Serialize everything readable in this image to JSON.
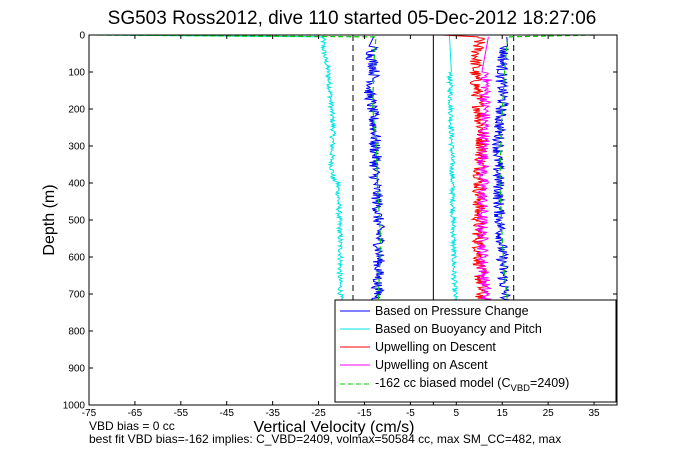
{
  "chart_data": {
    "type": "line",
    "title": "SG503 Ross2012, dive 110 started 05-Dec-2012 18:27:06",
    "xlabel": "Vertical Velocity (cm/s)",
    "ylabel": "Depth (m)",
    "xlim": [
      -75,
      40
    ],
    "ylim": [
      1000,
      0
    ],
    "y_reversed": true,
    "grid": false,
    "xticks": [
      -75,
      -65,
      -55,
      -45,
      -35,
      -25,
      -15,
      -5,
      5,
      15,
      25,
      35
    ],
    "yticks": [
      0,
      100,
      200,
      300,
      400,
      500,
      600,
      700,
      800,
      900,
      1000
    ],
    "legend_position": "bottom-right",
    "series": [
      {
        "name": "Based on Pressure Change",
        "color": "#0000ff",
        "style": "solid",
        "branches": [
          {
            "x": [
              -13,
              -13.2,
              -13.5,
              -12.8,
              -13,
              -14,
              -13.6,
              -13.2,
              -13,
              -12.6,
              -12.8,
              -12.5,
              -12.8,
              -12.6,
              -12.4,
              -12.2,
              -12,
              -11.8,
              -11.8,
              -12,
              -12.2,
              -12,
              -12.4,
              -12.2
            ],
            "y": [
              5,
              30,
              60,
              90,
              120,
              150,
              180,
              210,
              240,
              270,
              300,
              330,
              360,
              390,
              420,
              450,
              500,
              550,
              600,
              650,
              680,
              700,
              715,
              725
            ]
          },
          {
            "x": [
              16,
              15.5,
              15.2,
              15,
              14.8,
              15,
              15.2,
              14.6,
              14.4,
              14.2,
              14,
              14.3,
              14.2,
              14.5,
              14.8,
              15,
              15.2,
              15.4,
              15.6,
              15.8,
              16
            ],
            "y": [
              5,
              30,
              60,
              90,
              120,
              150,
              180,
              210,
              250,
              300,
              350,
              400,
              450,
              500,
              550,
              600,
              650,
              680,
              700,
              715,
              725
            ]
          }
        ]
      },
      {
        "name": "Based on Buoyancy and Pitch",
        "color": "#00e5e5",
        "style": "solid",
        "branches": [
          {
            "x": [
              -73,
              -24,
              -24,
              -23.6,
              -23,
              -22.5,
              -22.2,
              -21.8,
              -22,
              -22.2,
              -21.8,
              -20.8,
              -20.5,
              -20.2,
              -20.4,
              -20.2,
              -20.2
            ],
            "y": [
              0,
              5,
              30,
              60,
              90,
              150,
              200,
              250,
              300,
              350,
              390,
              400,
              500,
              600,
              650,
              700,
              725
            ]
          },
          {
            "x": [
              3.5,
              3.6,
              3.8,
              4,
              4.3,
              4.5,
              4.8
            ],
            "y": [
              0,
              100,
              200,
              300,
              500,
              650,
              725
            ]
          }
        ]
      },
      {
        "name": "Upwelling on Descent",
        "color": "#ff0000",
        "style": "solid",
        "branches": [
          {
            "x": [
              2,
              10,
              9.5,
              9,
              9.5,
              10,
              10.4,
              10.6,
              10.3,
              10,
              9.8,
              10,
              10.2,
              10.4,
              10.6
            ],
            "y": [
              0,
              5,
              50,
              100,
              150,
              200,
              250,
              300,
              350,
              400,
              500,
              600,
              650,
              700,
              725
            ]
          }
        ]
      },
      {
        "name": "Upwelling on Ascent",
        "color": "#ff00ff",
        "style": "solid",
        "branches": [
          {
            "x": [
              12,
              11.6,
              11.3,
              11,
              10.8,
              10.6,
              10.8,
              11,
              11.4,
              11.6
            ],
            "y": [
              5,
              100,
              200,
              300,
              400,
              500,
              600,
              650,
              700,
              725
            ]
          }
        ]
      },
      {
        "name": "-162 cc biased model (C_VBD=2409)",
        "legend_main": "-162 cc biased model (C",
        "legend_sub": "VBD",
        "legend_tail": "=2409)",
        "color": "#00cc00",
        "style": "dashed",
        "branches": [
          {
            "x": [
              -73,
              -12.5,
              -13,
              -13.2,
              -12.4,
              -12.2,
              -11.5,
              -11.8,
              -12
            ],
            "y": [
              0,
              5,
              80,
              200,
              300,
              400,
              550,
              650,
              725
            ]
          },
          {
            "x": [
              35,
              16.2,
              15.5,
              14.8,
              14.5,
              15,
              15.5,
              16.2
            ],
            "y": [
              0,
              5,
              100,
              250,
              400,
              550,
              650,
              725
            ]
          }
        ]
      }
    ],
    "reference_lines": [
      {
        "x": 0,
        "style": "solid",
        "color": "#000000"
      },
      {
        "x": -17.5,
        "style": "dashed",
        "color": "#000000"
      },
      {
        "x": 17.5,
        "style": "dashed",
        "color": "#000000"
      }
    ],
    "annotations": [
      "VBD bias = 0 cc",
      "best fit VBD bias=-162 implies: C_VBD=2409, volmax=50584 cc, max SM_CC=482, max"
    ]
  }
}
